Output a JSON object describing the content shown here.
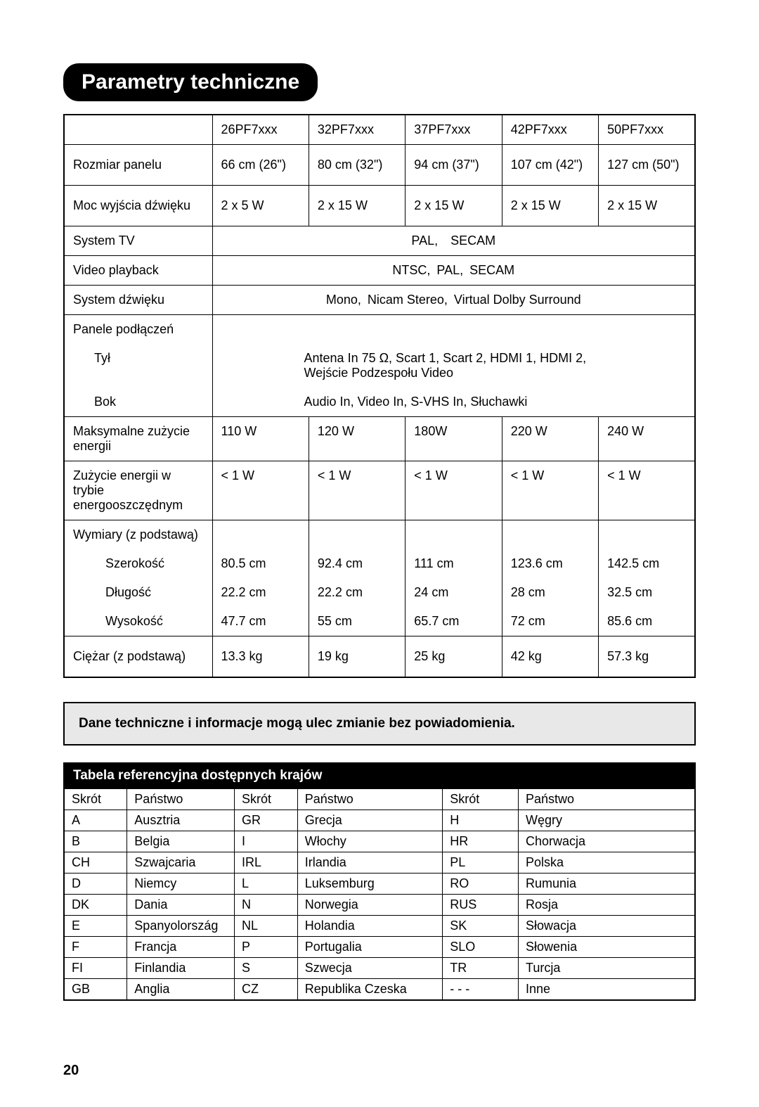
{
  "pageNumber": "20",
  "title": "Parametry techniczne",
  "spec": {
    "models": [
      "26PF7xxx",
      "32PF7xxx",
      "37PF7xxx",
      "42PF7xxx",
      "50PF7xxx"
    ],
    "panelSizeLabel": "Rozmiar panelu",
    "panelSize": [
      "66 cm (26\")",
      "80 cm (32\")",
      "94 cm (37\")",
      "107 cm (42\")",
      "127 cm (50\")"
    ],
    "soundOutLabel": "Moc wyjścia dźwięku",
    "soundOut": [
      "2 x 5 W",
      "2 x 15 W",
      "2 x 15 W",
      "2 x 15 W",
      "2 x 15 W"
    ],
    "tvSystemLabel": "System TV",
    "tvSystem": "PAL, SECAM",
    "videoPlaybackLabel": "Video playback",
    "videoPlayback": "NTSC, PAL, SECAM",
    "soundSystemLabel": "System dźwięku",
    "soundSystem": "Mono, Nicam Stereo, Virtual Dolby Surround",
    "connPanelLabel": "Panele podłączeń",
    "connRearLabel": "Tył",
    "connRear1": "Antena In 75 Ω, Scart 1, Scart 2, HDMI 1, HDMI 2,",
    "connRear2": "Wejście Podzespołu Video",
    "connSideLabel": "Bok",
    "connSide": "Audio In, Video In, S-VHS In, Słuchawki",
    "maxPowerLabel": "Maksymalne zużycie energii",
    "maxPower": [
      "110 W",
      "120 W",
      "180W",
      "220 W",
      "240 W"
    ],
    "standbyLabel": "Zużycie energii w trybie energooszczędnym",
    "standby": [
      "< 1 W",
      "< 1 W",
      "< 1 W",
      "< 1 W",
      "< 1 W"
    ],
    "dimsLabel": "Wymiary (z podstawą)",
    "widthLabel": "Szerokość",
    "width": [
      "80.5 cm",
      "92.4 cm",
      "111 cm",
      "123.6 cm",
      "142.5 cm"
    ],
    "depthLabel": "Długość",
    "depth": [
      "22.2 cm",
      "22.2 cm",
      "24 cm",
      "28 cm",
      "32.5 cm"
    ],
    "heightLabel": "Wysokość",
    "height": [
      "47.7 cm",
      "55 cm",
      "65.7 cm",
      "72 cm",
      "85.6 cm"
    ],
    "weightLabel": "Ciężar (z podstawą)",
    "weight": [
      "13.3 kg",
      "19 kg",
      "25 kg",
      "42 kg",
      "57.3 kg"
    ]
  },
  "notice": "Dane techniczne i informacje mogą ulec zmianie bez powiadomienia.",
  "countryTable": {
    "title": "Tabela referencyjna dostępnych krajów",
    "headers": {
      "abbr": "Skrót",
      "country": "Państwo"
    },
    "rows": [
      [
        "A",
        "Ausztria",
        "GR",
        "Grecja",
        "H",
        "Węgry"
      ],
      [
        "B",
        "Belgia",
        "I",
        "Włochy",
        "HR",
        "Chorwacja"
      ],
      [
        "CH",
        "Szwajcaria",
        "IRL",
        "Irlandia",
        "PL",
        "Polska"
      ],
      [
        "D",
        "Niemcy",
        "L",
        "Luksemburg",
        "RO",
        "Rumunia"
      ],
      [
        "DK",
        "Dania",
        "N",
        "Norwegia",
        "RUS",
        "Rosja"
      ],
      [
        "E",
        "Spanyolország",
        "NL",
        "Holandia",
        "SK",
        "Słowacja"
      ],
      [
        "F",
        "Francja",
        "P",
        "Portugalia",
        "SLO",
        "Słowenia"
      ],
      [
        "FI",
        "Finlandia",
        "S",
        "Szwecja",
        "TR",
        "Turcja"
      ],
      [
        "GB",
        "Anglia",
        "CZ",
        "Republika Czeska",
        "- - -",
        "Inne"
      ]
    ],
    "colWidths": [
      "10%",
      "17%",
      "10%",
      "23%",
      "12%",
      "28%"
    ]
  }
}
